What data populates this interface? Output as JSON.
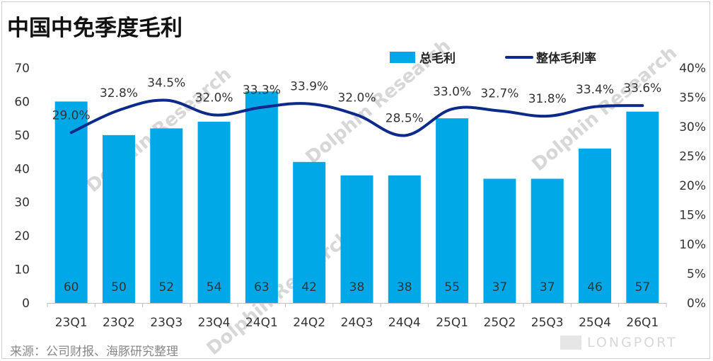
{
  "title": "中国中免季度毛利",
  "source": "来源：公司财报、海豚研究整理",
  "watermark": "Dolphin Research",
  "brand": "LONGPORT",
  "colors": {
    "bar": "#00a8e8",
    "line": "#0c2a8a",
    "axis": "#bfbfbf",
    "text": "#333333"
  },
  "chart_data": {
    "type": "bar",
    "title": "中国中免季度毛利",
    "categories": [
      "23Q1",
      "23Q2",
      "23Q3",
      "23Q4",
      "24Q1",
      "24Q2",
      "24Q3",
      "24Q4",
      "25Q1",
      "25Q2",
      "25Q3",
      "25Q4",
      "26Q1"
    ],
    "series": [
      {
        "name": "总毛利",
        "type": "bar",
        "axis": "left",
        "values": [
          60,
          50,
          52,
          54,
          63,
          42,
          38,
          38,
          55,
          37,
          37,
          46,
          57
        ],
        "labels": [
          "60",
          "50",
          "52",
          "54",
          "63",
          "42",
          "38",
          "38",
          "55",
          "37",
          "37",
          "46",
          "57"
        ]
      },
      {
        "name": "整体毛利率",
        "type": "line",
        "axis": "right",
        "values": [
          29.0,
          32.8,
          34.5,
          32.0,
          33.3,
          33.9,
          32.0,
          28.5,
          33.0,
          32.7,
          31.8,
          33.4,
          33.6
        ],
        "labels": [
          "29.0%",
          "32.8%",
          "34.5%",
          "32.0%",
          "33.3%",
          "33.9%",
          "32.0%",
          "28.5%",
          "33.0%",
          "32.7%",
          "31.8%",
          "33.4%",
          "33.6%"
        ]
      }
    ],
    "left_axis": {
      "ylim": [
        0,
        70
      ],
      "ticks": [
        "0",
        "10",
        "20",
        "30",
        "40",
        "50",
        "60",
        "70"
      ]
    },
    "right_axis": {
      "ylim": [
        0,
        40
      ],
      "ticks": [
        "0%",
        "5%",
        "10%",
        "15%",
        "20%",
        "25%",
        "30%",
        "35%",
        "40%"
      ]
    },
    "legend": {
      "position": "top-right",
      "items": [
        "总毛利",
        "整体毛利率"
      ]
    },
    "grid": false
  }
}
